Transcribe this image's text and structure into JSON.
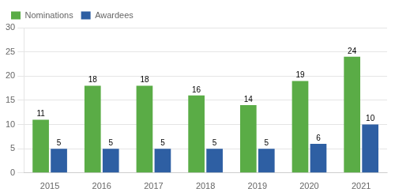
{
  "chart_data": {
    "type": "bar",
    "categories": [
      "2015",
      "2016",
      "2017",
      "2018",
      "2019",
      "2020",
      "2021"
    ],
    "series": [
      {
        "name": "Nominations",
        "color": "#5aac46",
        "values": [
          11,
          18,
          18,
          16,
          14,
          19,
          24
        ]
      },
      {
        "name": "Awardees",
        "color": "#2e5fa3",
        "values": [
          5,
          5,
          5,
          5,
          5,
          6,
          10
        ]
      }
    ],
    "ylim": [
      0,
      30
    ],
    "yticks": [
      0,
      5,
      10,
      15,
      20,
      25,
      30
    ],
    "grid": true,
    "legend": "upper left",
    "data_labels": true
  }
}
